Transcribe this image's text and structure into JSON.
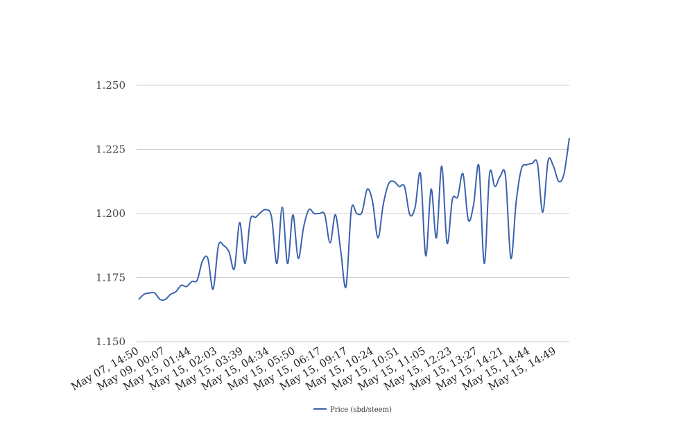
{
  "chart_data": {
    "type": "line",
    "title": "",
    "xlabel": "",
    "ylabel": "",
    "ylim": [
      1.15,
      1.25
    ],
    "yticks": [
      "1.150",
      "1.175",
      "1.200",
      "1.225",
      "1.250"
    ],
    "grid": true,
    "legend_position": "bottom",
    "x_tick_labels": [
      "May 07, 14:50",
      "May 09, 00:07",
      "May 15, 01:44",
      "May 15, 02:03",
      "May 15, 03:39",
      "May 15, 04:34",
      "May 15, 05:50",
      "May 15, 06:17",
      "May 15, 09:17",
      "May 15, 10:24",
      "May 15, 10:51",
      "May 15, 11:05",
      "May 15, 12:23",
      "May 15, 13:27",
      "May 15, 14:21",
      "May 15, 14:44",
      "May 15, 14:49"
    ],
    "series": [
      {
        "name": "Price (sbd/steem)",
        "color": "#3a62ad",
        "values": [
          1.1665,
          1.1685,
          1.169,
          1.169,
          1.1665,
          1.1665,
          1.1685,
          1.1695,
          1.172,
          1.1715,
          1.1735,
          1.174,
          1.1815,
          1.1825,
          1.1705,
          1.1875,
          1.1875,
          1.185,
          1.1785,
          1.1965,
          1.1805,
          1.1975,
          1.1985,
          1.2005,
          1.2015,
          1.1985,
          1.1805,
          1.2025,
          1.1805,
          1.1995,
          1.1825,
          1.1945,
          1.2015,
          1.2,
          1.2,
          1.1995,
          1.1885,
          1.1995,
          1.1855,
          1.1715,
          1.2015,
          1.2,
          1.2005,
          1.2095,
          1.2045,
          1.1905,
          1.2035,
          1.2115,
          1.2125,
          1.2105,
          1.2105,
          1.1995,
          1.2025,
          1.2155,
          1.1835,
          1.2095,
          1.1905,
          1.2185,
          1.1885,
          1.2055,
          1.2065,
          1.2155,
          1.1975,
          1.2035,
          1.2185,
          1.1805,
          1.2155,
          1.2105,
          1.2145,
          1.2145,
          1.1825,
          1.2045,
          1.2175,
          1.219,
          1.2195,
          1.2195,
          1.2005,
          1.2205,
          1.2185,
          1.2125,
          1.2155,
          1.2295
        ]
      }
    ]
  }
}
